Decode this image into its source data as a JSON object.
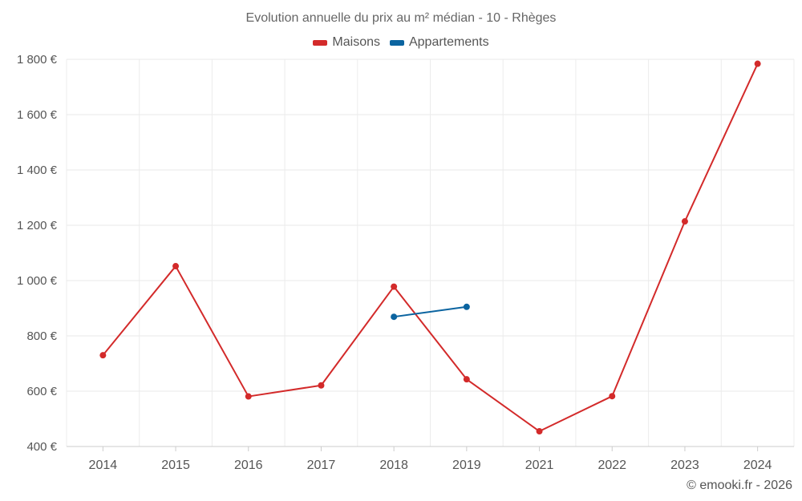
{
  "chart_data": {
    "type": "line",
    "title": "Evolution annuelle du prix au m² médian - 10 - Rhèges",
    "categories": [
      "2014",
      "2015",
      "2016",
      "2017",
      "2018",
      "2019",
      "2021",
      "2022",
      "2023",
      "2024"
    ],
    "series": [
      {
        "name": "Maisons",
        "color": "#d32a2a",
        "values": [
          730,
          1052,
          581,
          621,
          978,
          643,
          455,
          582,
          1214,
          1784
        ]
      },
      {
        "name": "Appartements",
        "color": "#0b64a0",
        "values": [
          null,
          null,
          null,
          null,
          869,
          905,
          null,
          null,
          null,
          null
        ]
      }
    ],
    "ylim": [
      400,
      1800
    ],
    "yticks": [
      400,
      600,
      800,
      1000,
      1200,
      1400,
      1600,
      1800
    ],
    "ytick_labels": [
      "400 €",
      "600 €",
      "800 €",
      "1 000 €",
      "1 200 €",
      "1 400 €",
      "1 600 €",
      "1 800 €"
    ],
    "xlabel": "",
    "ylabel": "",
    "grid": true,
    "legend_position": "top-center"
  },
  "credit": "© emooki.fr - 2026"
}
